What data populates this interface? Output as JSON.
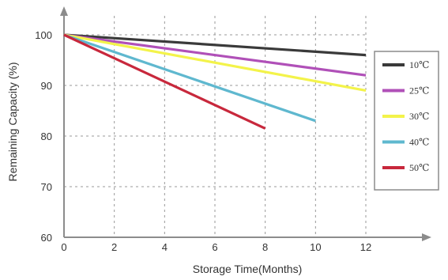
{
  "chart_data": {
    "type": "line",
    "title": "",
    "xlabel": "Storage Time(Months)",
    "ylabel": "Remaining Capacity (%)",
    "xlim": [
      0,
      12
    ],
    "ylim": [
      60,
      100
    ],
    "xticks": [
      "0",
      "2",
      "4",
      "6",
      "8",
      "10",
      "12"
    ],
    "yticks": [
      "60",
      "70",
      "80",
      "90",
      "100"
    ],
    "grid": true,
    "legend_position": "right",
    "series": [
      {
        "name": "10℃",
        "color": "#3a3a3a",
        "x": [
          0,
          12
        ],
        "y": [
          100,
          96
        ]
      },
      {
        "name": "25℃",
        "color": "#b050b8",
        "x": [
          0,
          12
        ],
        "y": [
          100,
          92
        ]
      },
      {
        "name": "30℃",
        "color": "#f3f34a",
        "x": [
          0,
          12
        ],
        "y": [
          100,
          89
        ]
      },
      {
        "name": "40℃",
        "color": "#5fb8cf",
        "x": [
          0,
          10
        ],
        "y": [
          100,
          83
        ]
      },
      {
        "name": "50℃",
        "color": "#c8283c",
        "x": [
          0,
          8
        ],
        "y": [
          100,
          81.5
        ]
      }
    ]
  }
}
